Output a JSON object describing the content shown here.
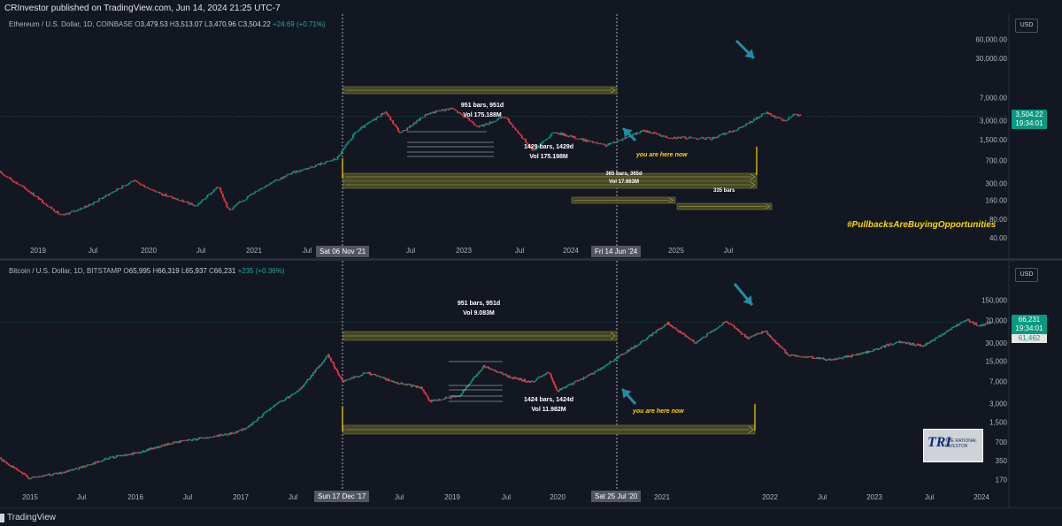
{
  "header": {
    "published": "CRInvestor published on TradingView.com, Jun 14, 2024 21:25 UTC-7"
  },
  "footer": {
    "brand": "TradingView"
  },
  "colors": {
    "background": "#131722",
    "up": "#089981",
    "down": "#f23645",
    "band": "#5a5a2c",
    "annotation": "#ffd600",
    "arrow": "#1e8fa6"
  },
  "icons": [
    "tradingview-logo-icon",
    "teal-arrow-icon"
  ],
  "hashtag": "#PullbacksAreBuyingOpportunities",
  "chart_data": [
    {
      "type": "candlestick",
      "title": "Ethereum / U.S. Dollar, 1D, COINBASE",
      "ohlc": {
        "o_label": "O",
        "o": "3,479.53",
        "h_label": "H",
        "h": "3,513.07",
        "l_label": "L",
        "l": "3,470.96",
        "c_label": "C",
        "c": "3,504.22",
        "change": "+24.69 (+0.71%)"
      },
      "currency": "USD",
      "yscale": "log",
      "ylim": [
        30,
        85000
      ],
      "xlim": [
        "2018-07-01",
        "2025-12-31"
      ],
      "y_ticks": [
        "60,000.00",
        "30,000.00",
        "7,000.00",
        "3,000.00",
        "1,500.00",
        "700.00",
        "300.00",
        "160.00",
        "80.00",
        "40.00"
      ],
      "x_ticks": [
        "2019",
        "Jul",
        "2020",
        "Jul",
        "2021",
        "Jul",
        "Jul",
        "2023",
        "Jul",
        "2024",
        "2025",
        "Jul"
      ],
      "last_price": "3,504.22",
      "countdown": "19:34:01",
      "crosshair_dates": [
        "Sat 06 Nov '21",
        "Fri 14 Jun '24"
      ],
      "series": [
        {
          "name": "ETH close",
          "points": [
            [
              "2018-07-01",
              450
            ],
            [
              "2018-09-15",
              230
            ],
            [
              "2018-12-15",
              90
            ],
            [
              "2019-03-01",
              135
            ],
            [
              "2019-06-26",
              330
            ],
            [
              "2019-09-15",
              200
            ],
            [
              "2019-12-15",
              130
            ],
            [
              "2020-02-15",
              270
            ],
            [
              "2020-03-13",
              110
            ],
            [
              "2020-06-01",
              240
            ],
            [
              "2020-09-01",
              440
            ],
            [
              "2020-12-31",
              740
            ],
            [
              "2021-02-20",
              1950
            ],
            [
              "2021-05-12",
              4200
            ],
            [
              "2021-06-22",
              1880
            ],
            [
              "2021-09-03",
              3900
            ],
            [
              "2021-11-08",
              4800
            ],
            [
              "2022-01-22",
              2400
            ],
            [
              "2022-04-02",
              3500
            ],
            [
              "2022-06-18",
              1000
            ],
            [
              "2022-08-14",
              1980
            ],
            [
              "2022-12-31",
              1200
            ],
            [
              "2023-04-15",
              2100
            ],
            [
              "2023-06-15",
              1650
            ],
            [
              "2023-10-15",
              1560
            ],
            [
              "2024-01-01",
              2300
            ],
            [
              "2024-03-12",
              4050
            ],
            [
              "2024-05-01",
              2950
            ],
            [
              "2024-05-27",
              3900
            ],
            [
              "2024-06-14",
              3504
            ]
          ]
        }
      ],
      "annotations": {
        "measure1": [
          "951 bars, 951d",
          "Vol 175.188M"
        ],
        "measure2": [
          "1429 bars, 1429d",
          "Vol 175.198M"
        ],
        "measure3": [
          "365 bars, 365d",
          "Vol 17.663M"
        ],
        "measure4": "335 bars",
        "you_are_here": "you are here now"
      }
    },
    {
      "type": "candlestick",
      "title": "Bitcoin / U.S. Dollar, 1D, BITSTAMP",
      "ohlc": {
        "o_label": "O",
        "o": "65,995",
        "h_label": "H",
        "h": "66,319",
        "l_label": "L",
        "l": "65,937",
        "c_label": "C",
        "c": "66,231",
        "change": "+235 (+0.36%)"
      },
      "currency": "USD",
      "yscale": "log",
      "ylim": [
        120,
        320000
      ],
      "xlim": [
        "2014-10-01",
        "2024-08-15"
      ],
      "y_ticks": [
        "150,000",
        "70,000",
        "30,000",
        "15,000",
        "7,000",
        "3,000",
        "1,500",
        "700",
        "350",
        "170"
      ],
      "x_ticks": [
        "2015",
        "Jul",
        "2016",
        "Jul",
        "2017",
        "Jul",
        "Jul",
        "2019",
        "Jul",
        "2020",
        "2021",
        "2022",
        "Jul",
        "2023",
        "Jul",
        "2024"
      ],
      "last_price": "66,231",
      "countdown": "19:34:01",
      "prev_price": "61,462",
      "crosshair_dates": [
        "Sun 17 Dec '17",
        "Sat 25 Jul '20"
      ],
      "series": [
        {
          "name": "BTC close",
          "points": [
            [
              "2014-10-01",
              380
            ],
            [
              "2015-01-14",
              180
            ],
            [
              "2015-06-01",
              230
            ],
            [
              "2015-11-04",
              400
            ],
            [
              "2016-01-01",
              430
            ],
            [
              "2016-06-18",
              700
            ],
            [
              "2016-12-31",
              960
            ],
            [
              "2017-03-01",
              1200
            ],
            [
              "2017-06-12",
              2900
            ],
            [
              "2017-09-01",
              4800
            ],
            [
              "2017-12-17",
              19000
            ],
            [
              "2018-02-06",
              6900
            ],
            [
              "2018-05-05",
              9800
            ],
            [
              "2018-08-01",
              7000
            ],
            [
              "2018-11-15",
              5500
            ],
            [
              "2018-12-15",
              3300
            ],
            [
              "2019-04-01",
              4100
            ],
            [
              "2019-06-26",
              12500
            ],
            [
              "2019-09-30",
              8200
            ],
            [
              "2019-12-17",
              6800
            ],
            [
              "2020-02-14",
              10300
            ],
            [
              "2020-03-13",
              4800
            ],
            [
              "2020-07-25",
              9700
            ],
            [
              "2020-12-31",
              29000
            ],
            [
              "2021-04-14",
              63000
            ],
            [
              "2021-07-20",
              30000
            ],
            [
              "2021-11-10",
              68000
            ],
            [
              "2022-01-24",
              36000
            ],
            [
              "2022-03-28",
              47000
            ],
            [
              "2022-06-18",
              19000
            ],
            [
              "2022-11-21",
              15800
            ],
            [
              "2023-03-10",
              20000
            ],
            [
              "2023-07-13",
              31000
            ],
            [
              "2023-10-15",
              27000
            ],
            [
              "2024-01-01",
              44000
            ],
            [
              "2024-03-14",
              73000
            ],
            [
              "2024-05-01",
              57000
            ],
            [
              "2024-06-14",
              66231
            ]
          ]
        }
      ],
      "annotations": {
        "measure1": [
          "951 bars, 951d",
          "Vol 9.083M"
        ],
        "measure2": [
          "1424 bars, 1424d",
          "Vol 11.982M"
        ],
        "you_are_here": "you are here now"
      }
    }
  ]
}
